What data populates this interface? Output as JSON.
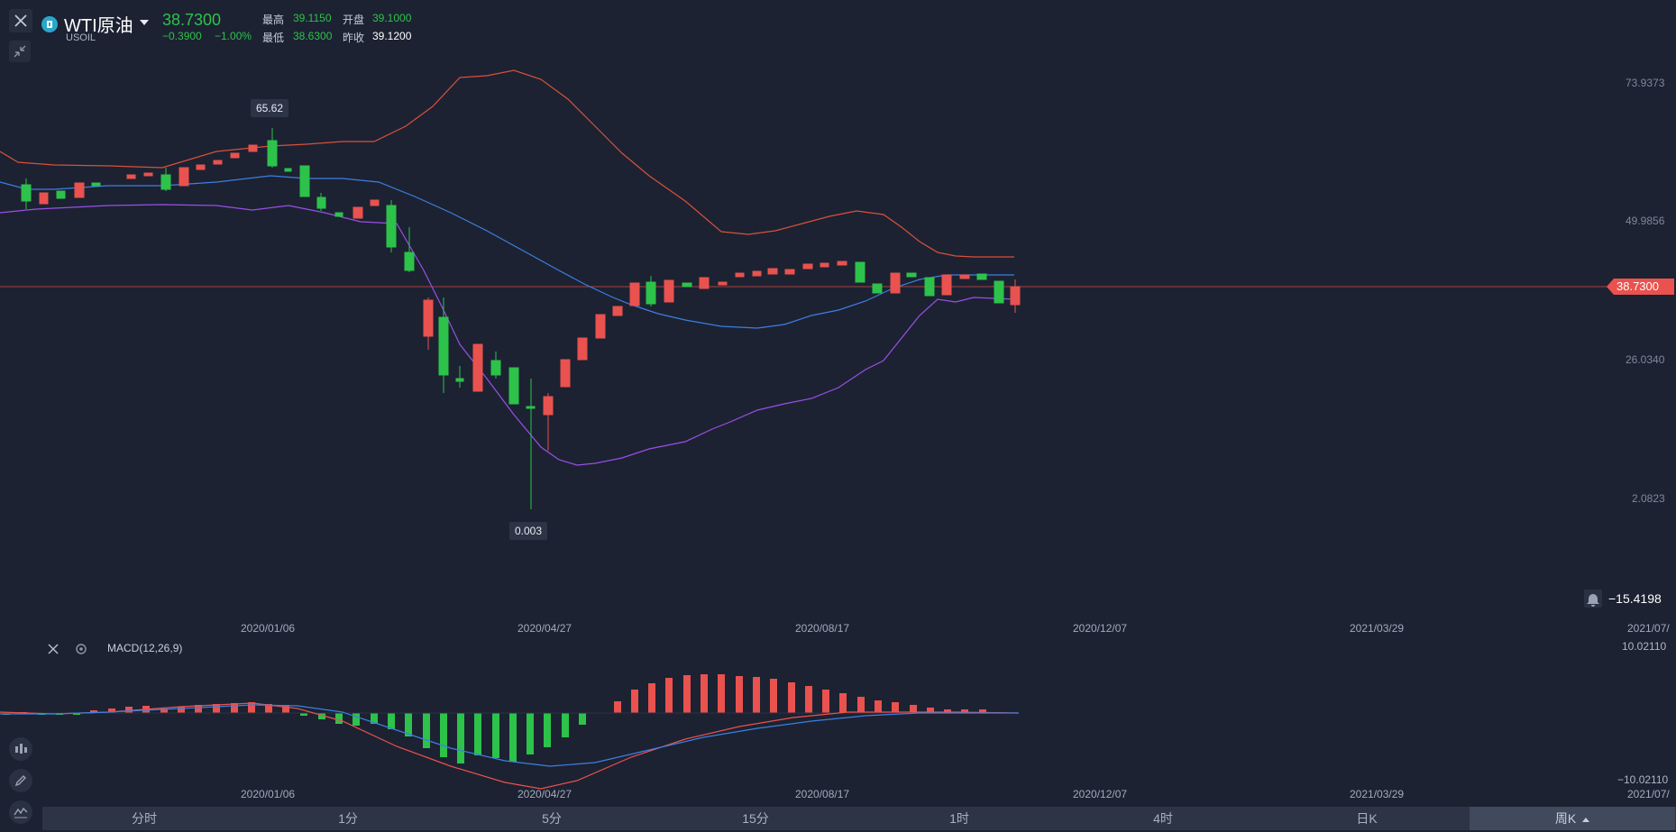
{
  "header": {
    "symbol_name": "WTI原油",
    "symbol_code": "USOIL",
    "price": "38.7300",
    "change": "−0.3900",
    "change_pct": "−1.00%",
    "high_label": "最高",
    "high_value": "39.1150",
    "open_label": "开盘",
    "open_value": "39.1000",
    "low_label": "最低",
    "low_value": "38.6300",
    "prev_close_label": "昨收",
    "prev_close_value": "39.1200"
  },
  "main_chart": {
    "price_axis_labels": [
      "73.9373",
      "49.9856",
      "26.0340",
      "2.0823"
    ],
    "current_price_tag": "38.7300",
    "high_marker": "65.62",
    "low_marker": "0.003",
    "alert_value": "−15.4198",
    "date_labels": [
      "2020/01/06",
      "2020/04/27",
      "2020/08/17",
      "2020/12/07",
      "2021/03/29",
      "2021/07/"
    ]
  },
  "macd": {
    "title": "MACD(12,26,9)",
    "axis_top": "10.02110",
    "axis_bottom": "−10.02110",
    "date_labels": [
      "2020/01/06",
      "2020/04/27",
      "2020/08/17",
      "2020/12/07",
      "2021/03/29",
      "2021/07/"
    ]
  },
  "timeframe_tabs": [
    "分时",
    "1分",
    "5分",
    "15分",
    "1时",
    "4时",
    "日K",
    "周K"
  ],
  "active_tab": "周K",
  "colors": {
    "background": "#1c2232",
    "up": "#e9524e",
    "down": "#2dc24a",
    "ma_line": "#3d7fe0",
    "upper_band": "#d9503b",
    "lower_band": "#9a4fe6"
  },
  "icons": {
    "close": "close-icon",
    "collapse": "collapse-arrows-icon",
    "settings": "settings-icon",
    "alert": "bell-icon",
    "candle_type": "candles-icon",
    "draw": "pencil-icon",
    "indicator": "indicator-icon"
  }
}
